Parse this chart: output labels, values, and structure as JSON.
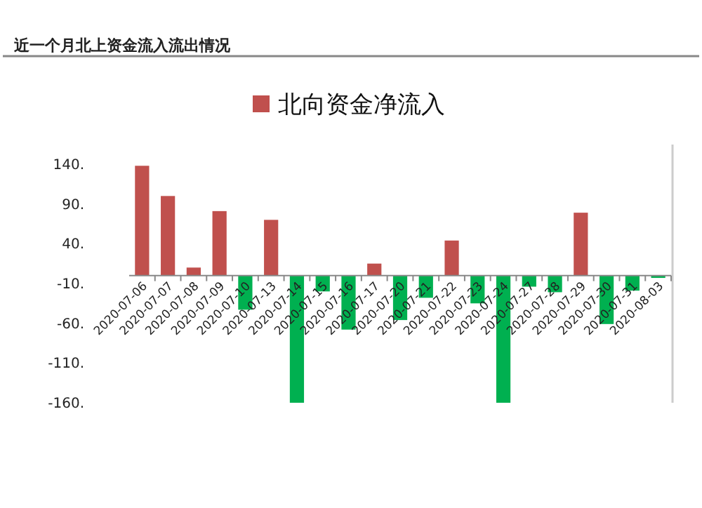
{
  "chart_data": {
    "type": "bar",
    "title": "近一个月北上资金流入流出情况",
    "categories": [
      "2020-07-06",
      "2020-07-07",
      "2020-07-08",
      "2020-07-09",
      "2020-07-10",
      "2020-07-13",
      "2020-07-14",
      "2020-07-15",
      "2020-07-16",
      "2020-07-17",
      "2020-07-20",
      "2020-07-21",
      "2020-07-22",
      "2020-07-23",
      "2020-07-24",
      "2020-07-27",
      "2020-07-28",
      "2020-07-29",
      "2020-07-30",
      "2020-07-31",
      "2020-08-03"
    ],
    "series": [
      {
        "name": "北向资金净流入",
        "color": "#c0504d",
        "colors": [
          "#c0504d",
          "#c0504d",
          "#c0504d",
          "#c0504d",
          "#00b050",
          "#c0504d",
          "#00b050",
          "#00b050",
          "#00b050",
          "#c0504d",
          "#00b050",
          "#00b050",
          "#c0504d",
          "#00b050",
          "#00b050",
          "#00b050",
          "#00b050",
          "#c0504d",
          "#00b050",
          "#00b050",
          "#00b050"
        ],
        "values": [
          138,
          100,
          10,
          81,
          -43,
          70,
          -160,
          -20,
          -68,
          15,
          -56,
          -28,
          44,
          -35,
          -160,
          -14,
          -21,
          79,
          -61,
          -19,
          -3
        ]
      }
    ],
    "ylim": [
      -160,
      140
    ],
    "yticks": [
      {
        "value": 140,
        "label": "140."
      },
      {
        "value": 90,
        "label": "90."
      },
      {
        "value": 40,
        "label": "40."
      },
      {
        "value": -10,
        "label": "-10."
      },
      {
        "value": -60,
        "label": "-60."
      },
      {
        "value": -110,
        "label": "-110."
      },
      {
        "value": -160,
        "label": "-160."
      }
    ],
    "legend": "top",
    "grid": false
  }
}
